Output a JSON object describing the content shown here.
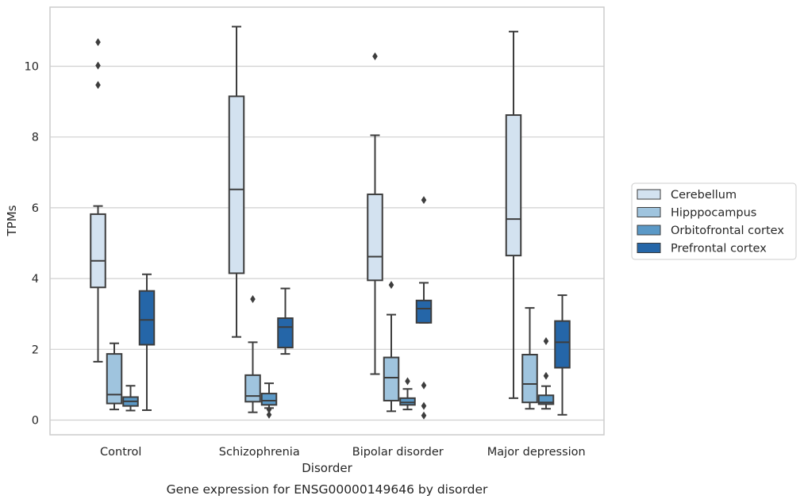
{
  "chart_data": {
    "type": "box",
    "title": "",
    "caption": "Gene expression for ENSG00000149646 by disorder",
    "xlabel": "Disorder",
    "ylabel": "TPMs",
    "ylim": [
      -0.4,
      11.7
    ],
    "yticks": [
      0,
      2,
      4,
      6,
      8,
      10
    ],
    "grid": "horizontal",
    "legend_position": "right",
    "categories": [
      "Control",
      "Schizophrenia",
      "Bipolar disorder",
      "Major depression"
    ],
    "series": [
      {
        "name": "Cerebellum",
        "color": "#d3e2f0",
        "boxes": [
          {
            "whisker_low": 1.65,
            "q1": 3.75,
            "median": 4.5,
            "q3": 5.82,
            "whisker_high": 6.05,
            "outliers": [
              9.47,
              10.02,
              10.68
            ]
          },
          {
            "whisker_low": 2.35,
            "q1": 4.15,
            "median": 6.52,
            "q3": 9.15,
            "whisker_high": 11.12,
            "outliers": []
          },
          {
            "whisker_low": 1.3,
            "q1": 3.95,
            "median": 4.62,
            "q3": 6.38,
            "whisker_high": 8.05,
            "outliers": [
              10.28
            ]
          },
          {
            "whisker_low": 0.62,
            "q1": 4.65,
            "median": 5.68,
            "q3": 8.62,
            "whisker_high": 10.98,
            "outliers": []
          }
        ]
      },
      {
        "name": "Hipppocampus",
        "color": "#9fc4de",
        "boxes": [
          {
            "whisker_low": 0.3,
            "q1": 0.47,
            "median": 0.72,
            "q3": 1.87,
            "whisker_high": 2.17,
            "outliers": []
          },
          {
            "whisker_low": 0.22,
            "q1": 0.52,
            "median": 0.68,
            "q3": 1.27,
            "whisker_high": 2.2,
            "outliers": [
              3.42
            ]
          },
          {
            "whisker_low": 0.25,
            "q1": 0.55,
            "median": 1.2,
            "q3": 1.77,
            "whisker_high": 2.98,
            "outliers": [
              3.82
            ]
          },
          {
            "whisker_low": 0.32,
            "q1": 0.5,
            "median": 1.02,
            "q3": 1.85,
            "whisker_high": 3.17,
            "outliers": []
          }
        ]
      },
      {
        "name": "Orbitofrontal cortex",
        "color": "#5b99c7",
        "boxes": [
          {
            "whisker_low": 0.27,
            "q1": 0.4,
            "median": 0.53,
            "q3": 0.65,
            "whisker_high": 0.97,
            "outliers": []
          },
          {
            "whisker_low": 0.34,
            "q1": 0.43,
            "median": 0.55,
            "q3": 0.75,
            "whisker_high": 1.04,
            "outliers": [
              0.15,
              0.3
            ]
          },
          {
            "whisker_low": 0.3,
            "q1": 0.43,
            "median": 0.5,
            "q3": 0.62,
            "whisker_high": 0.88,
            "outliers": [
              1.1
            ]
          },
          {
            "whisker_low": 0.32,
            "q1": 0.45,
            "median": 0.5,
            "q3": 0.7,
            "whisker_high": 0.96,
            "outliers": [
              1.25,
              2.23
            ]
          }
        ]
      },
      {
        "name": "Prefrontal cortex",
        "color": "#2566a8",
        "boxes": [
          {
            "whisker_low": 0.28,
            "q1": 2.13,
            "median": 2.83,
            "q3": 3.65,
            "whisker_high": 4.12,
            "outliers": []
          },
          {
            "whisker_low": 1.87,
            "q1": 2.05,
            "median": 2.63,
            "q3": 2.88,
            "whisker_high": 3.72,
            "outliers": []
          },
          {
            "whisker_low": 2.75,
            "q1": 2.75,
            "median": 3.15,
            "q3": 3.38,
            "whisker_high": 3.88,
            "outliers": [
              0.13,
              0.4,
              0.98,
              6.22
            ]
          },
          {
            "whisker_low": 0.15,
            "q1": 1.48,
            "median": 2.2,
            "q3": 2.8,
            "whisker_high": 3.53,
            "outliers": []
          }
        ]
      }
    ]
  }
}
